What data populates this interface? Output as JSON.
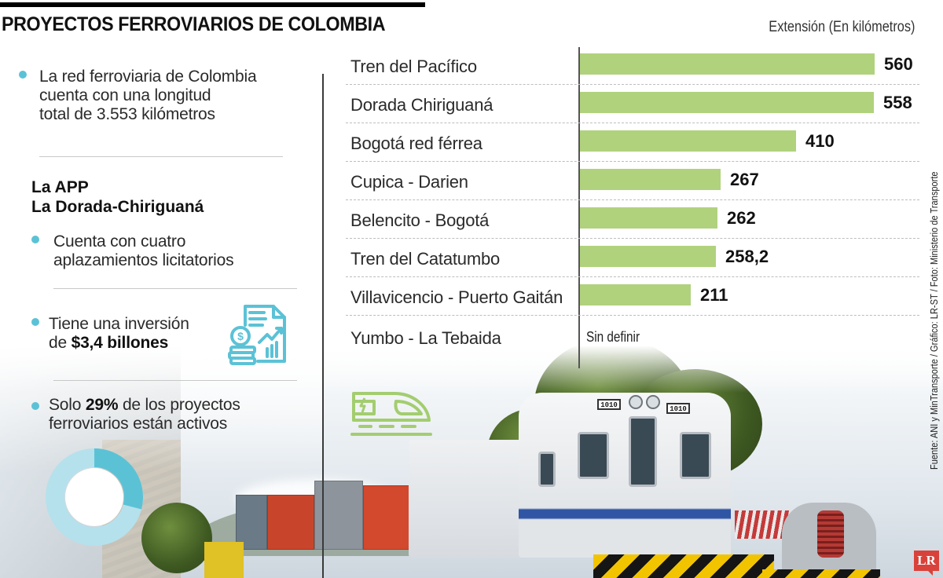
{
  "header": {
    "title": "PROYECTOS FERROVIARIOS DE COLOMBIA",
    "unit_label": "Extensión (En kilómetros)"
  },
  "facts": {
    "network": {
      "line1": "La red ferroviaria de Colombia",
      "line2": "cuenta con una longitud",
      "line3": "total de 3.553 kilómetros"
    },
    "app_heading": {
      "line1": "La APP",
      "line2": "La Dorada-Chiriguaná"
    },
    "delays": {
      "line1": "Cuenta con cuatro",
      "line2": "aplazamientos licitatorios"
    },
    "investment": {
      "line1": "Tiene una inversión",
      "prefix": "de ",
      "amount": "$3,4 billones"
    },
    "active": {
      "prefix": "Solo ",
      "percent": "29%",
      "suffix": " de los proyectos",
      "line2": "ferroviarios están activos"
    }
  },
  "colors": {
    "bar": "#b0d27d",
    "bullet": "#5bc2d6",
    "donut_active": "#5bc2d6",
    "donut_rest": "#b5e1ec",
    "logo": "#d9423a"
  },
  "donut": {
    "active_percent": 29
  },
  "icons": {
    "finance": "finance-report-icon",
    "train": "high-speed-train-icon"
  },
  "credit": "Fuente: ANI y MinTransporte / Gráfico: LR-ST / Foto: Ministerio de Transporte",
  "logo": "LR",
  "chart_data": {
    "type": "bar",
    "orientation": "horizontal",
    "title": "PROYECTOS FERROVIARIOS DE COLOMBIA",
    "xlabel": "Extensión (En kilómetros)",
    "ylabel": "",
    "categories": [
      "Tren del Pacífico",
      "Dorada Chiriguaná",
      "Bogotá red férrea",
      "Cupica - Darien",
      "Belencito - Bogotá",
      "Tren del Catatumbo",
      "Villavicencio - Puerto Gaitán",
      "Yumbo - La Tebaida"
    ],
    "values": [
      560,
      558,
      410,
      267,
      262,
      258.2,
      211,
      null
    ],
    "value_labels": [
      "560",
      "558",
      "410",
      "267",
      "262",
      "258,2",
      "211",
      "Sin definir"
    ],
    "xlim": [
      0,
      560
    ],
    "grid": false,
    "legend": "none"
  }
}
